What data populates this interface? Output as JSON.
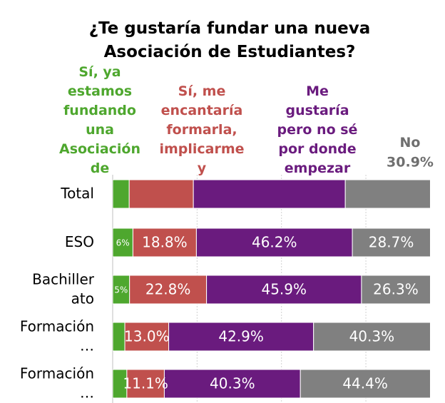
{
  "chart_data": {
    "type": "stacked_barh",
    "title": "¿Te gustaría fundar una nueva Asociación de Estudiantes?",
    "categories": [
      "Total",
      "ESO",
      "Bachillerato",
      "Formación…",
      "Formación…"
    ],
    "series": [
      {
        "name": "Sí, ya estamos fundando una Asociación de",
        "color": "#4ea72e",
        "values": [
          4.9,
          6,
          5,
          3.6,
          4.2
        ],
        "value_labels": [
          null,
          "6%",
          "5%",
          null,
          null
        ]
      },
      {
        "name": "Sí, me encantaría formarla, implicarme y",
        "color": "#c0504d",
        "values": [
          19.0,
          18.8,
          22.8,
          13.0,
          11.1
        ],
        "value_labels": [
          null,
          "18.8%",
          "22.8%",
          "13.0%",
          "11.1%"
        ]
      },
      {
        "name": "Me gustaría pero no sé por donde empezar",
        "color": "#6a1b7e",
        "values": [
          45.0,
          46.2,
          45.9,
          42.9,
          40.3
        ],
        "value_labels": [
          null,
          "46.2%",
          "45.9%",
          "42.9%",
          "40.3%"
        ]
      },
      {
        "name": "No",
        "color": "#808080",
        "values": [
          30.9,
          28.7,
          26.3,
          40.3,
          44.4
        ],
        "value_labels": [
          "30.9%",
          "28.7%",
          "26.3%",
          "40.3%",
          "44.4%"
        ]
      }
    ],
    "xlim": [
      0,
      94
    ],
    "xticks": [
      0,
      25,
      50,
      75
    ],
    "grid": true
  }
}
